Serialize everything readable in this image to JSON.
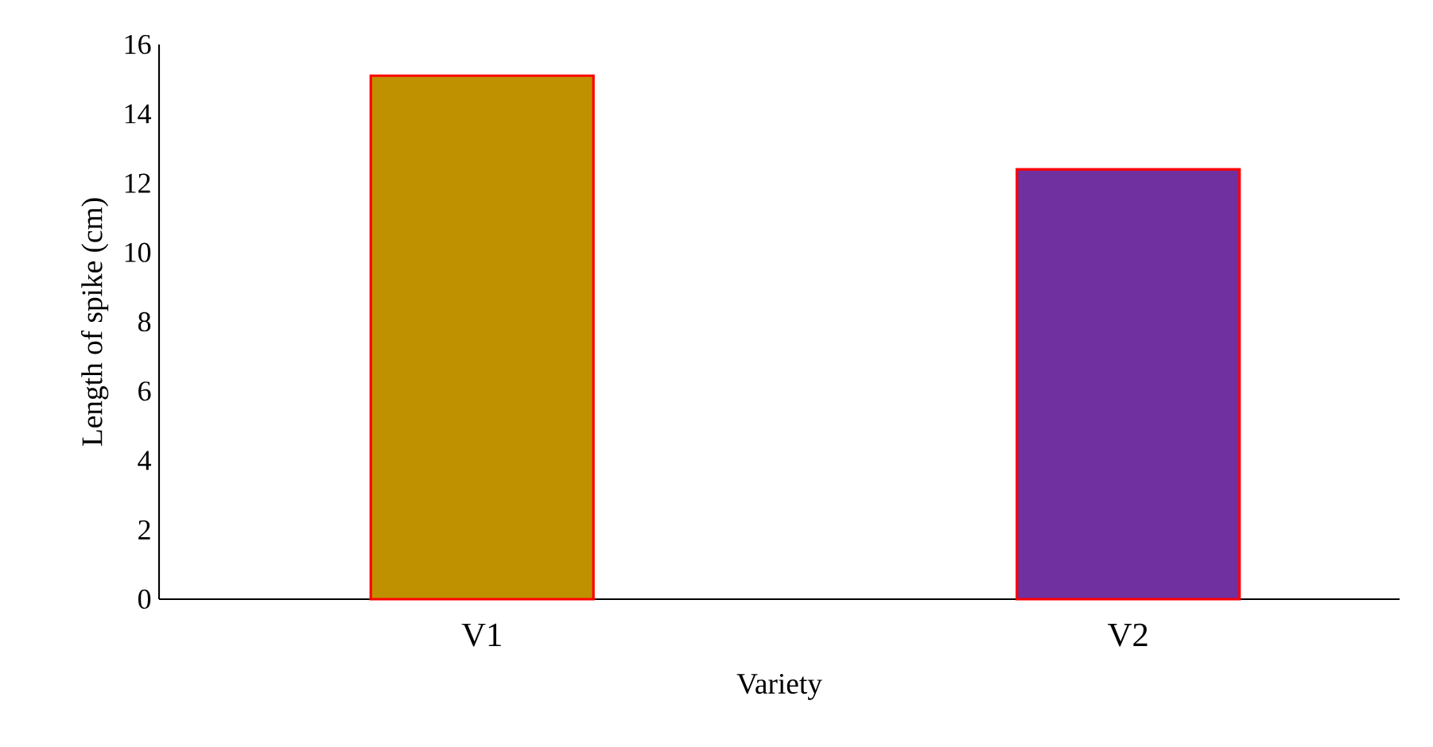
{
  "chart_data": {
    "type": "bar",
    "xlabel": "Variety",
    "ylabel": "Length of spike (cm)",
    "categories": [
      "V1",
      "V2"
    ],
    "values": [
      15.1,
      12.4
    ],
    "colors": [
      "#bf9000",
      "#7030a0"
    ],
    "ylim": [
      0,
      16
    ],
    "yticks": [
      0,
      2,
      4,
      6,
      8,
      10,
      12,
      14,
      16
    ],
    "grid": false
  }
}
